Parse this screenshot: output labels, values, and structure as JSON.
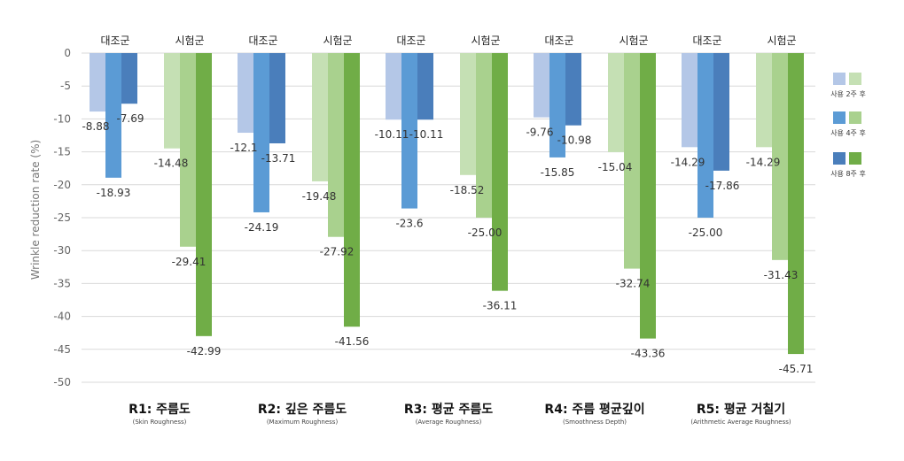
{
  "chart_data": {
    "type": "bar",
    "title": "",
    "ylabel": "Wrinkle reduction rate (%)",
    "ylim": [
      -50,
      0
    ],
    "yticks": [
      0,
      -5,
      -10,
      -15,
      -20,
      -25,
      -30,
      -35,
      -40,
      -45,
      -50
    ],
    "grid": true,
    "legend_position": "right",
    "legend": [
      "사용 2주 후",
      "사용 4주 후",
      "사용 8주 후"
    ],
    "group_labels": [
      "대조군",
      "시험군"
    ],
    "colors": {
      "control": [
        "#b4c7e7",
        "#5b9bd5",
        "#4a7ebb"
      ],
      "test": [
        "#c5e0b4",
        "#a9d18e",
        "#70ad47"
      ]
    },
    "categories": [
      {
        "name": "R1: 주름도",
        "sub": "(Skin Roughness)"
      },
      {
        "name": "R2: 깊은 주름도",
        "sub": "(Maximum Roughness)"
      },
      {
        "name": "R3: 평균 주름도",
        "sub": "(Average Roughness)"
      },
      {
        "name": "R4: 주름 평균깊이",
        "sub": "(Smoothness Depth)"
      },
      {
        "name": "R5: 평균 거칠기",
        "sub": "(Arithmetic Average Roughness)"
      }
    ],
    "series": [
      {
        "name": "대조군 사용 2주 후",
        "values": [
          -8.88,
          -12.1,
          -10.11,
          -9.76,
          -14.29
        ],
        "labels": [
          "-8.88",
          "-12.1",
          "-10.11",
          "-9.76",
          "-14.29"
        ]
      },
      {
        "name": "대조군 사용 4주 후",
        "values": [
          -18.93,
          -24.19,
          -23.6,
          -15.85,
          -25.0
        ],
        "labels": [
          "-18.93",
          "-24.19",
          "-23.6",
          "-15.85",
          "-25.00"
        ]
      },
      {
        "name": "대조군 사용 8주 후",
        "values": [
          -7.69,
          -13.71,
          -10.11,
          -10.98,
          -17.86
        ],
        "labels": [
          "-7.69",
          "-13.71",
          "-10.11",
          "-10.98",
          "-17.86"
        ]
      },
      {
        "name": "시험군 사용 2주 후",
        "values": [
          -14.48,
          -19.48,
          -18.52,
          -15.04,
          -14.29
        ],
        "labels": [
          "-14.48",
          "-19.48",
          "-18.52",
          "-15.04",
          "-14.29"
        ]
      },
      {
        "name": "시험군 사용 4주 후",
        "values": [
          -29.41,
          -27.92,
          -25.0,
          -32.74,
          -31.43
        ],
        "labels": [
          "-29.41",
          "-27.92",
          "-25.00",
          "-32.74",
          "-31.43"
        ]
      },
      {
        "name": "시험군 사용 8주 후",
        "values": [
          -42.99,
          -41.56,
          -36.11,
          -43.36,
          -45.71
        ],
        "labels": [
          "-42.99",
          "-41.56",
          "-36.11",
          "-43.36",
          "-45.71"
        ]
      }
    ]
  }
}
